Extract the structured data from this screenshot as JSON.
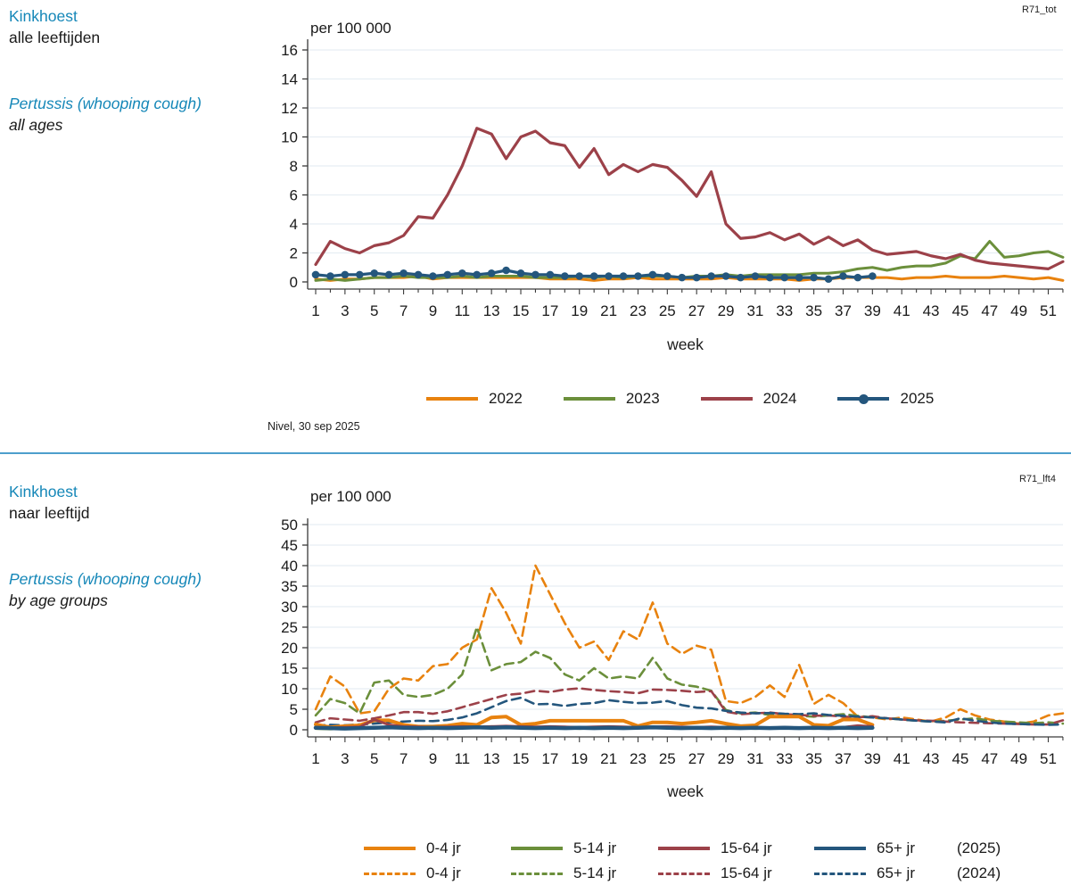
{
  "sections": [
    {
      "code": "R71_tot",
      "title": "Kinkhoest",
      "subtitle": "alle leeftijden",
      "title_en": "Pertussis (whooping cough)",
      "subtitle_en": "all ages",
      "source": "Nivel, 30 sep 2025"
    },
    {
      "code": "R71_lft4",
      "title": "Kinkhoest",
      "subtitle": "naar leeftijd",
      "title_en": "Pertussis (whooping cough)",
      "subtitle_en": "by age groups"
    }
  ],
  "colors": {
    "orange": "#E8820E",
    "green": "#6B8F3B",
    "maroon": "#9C4149",
    "navy": "#24567D",
    "header_blue": "#1587B8",
    "divider": "#4D9FCC",
    "grid": "#E7EEF3",
    "axis": "#3A3A3A",
    "text": "#1A1A1A"
  },
  "chart_data": [
    {
      "type": "line",
      "title": "Kinkhoest, alle leeftijden / Pertussis (whooping cough), all ages",
      "unit": "per 100 000",
      "xlabel": "week",
      "x_start_week": 1,
      "x_end_week": 52,
      "x_ticks": [
        1,
        3,
        5,
        7,
        9,
        11,
        13,
        15,
        17,
        19,
        21,
        23,
        25,
        27,
        29,
        31,
        33,
        35,
        37,
        39,
        41,
        43,
        45,
        47,
        49,
        51
      ],
      "ylim": [
        0,
        16
      ],
      "yticks": [
        0,
        2,
        4,
        6,
        8,
        10,
        12,
        14,
        16
      ],
      "grid": "horizontal",
      "legend_position": "bottom",
      "series": [
        {
          "name": "2022",
          "color_key": "orange",
          "style": "solid",
          "width": 3,
          "values": [
            0.2,
            0.1,
            0.2,
            0.2,
            0.3,
            0.3,
            0.3,
            0.4,
            0.2,
            0.3,
            0.3,
            0.3,
            0.3,
            0.3,
            0.3,
            0.3,
            0.2,
            0.2,
            0.2,
            0.1,
            0.2,
            0.2,
            0.3,
            0.2,
            0.2,
            0.2,
            0.2,
            0.2,
            0.3,
            0.2,
            0.2,
            0.2,
            0.2,
            0.1,
            0.2,
            0.2,
            0.3,
            0.3,
            0.3,
            0.3,
            0.2,
            0.3,
            0.3,
            0.4,
            0.3,
            0.3,
            0.3,
            0.4,
            0.3,
            0.2,
            0.3,
            0.1
          ]
        },
        {
          "name": "2023",
          "color_key": "green",
          "style": "solid",
          "width": 3,
          "values": [
            0.1,
            0.2,
            0.1,
            0.2,
            0.3,
            0.3,
            0.4,
            0.3,
            0.3,
            0.3,
            0.4,
            0.3,
            0.4,
            0.4,
            0.4,
            0.3,
            0.3,
            0.3,
            0.4,
            0.3,
            0.4,
            0.3,
            0.4,
            0.4,
            0.4,
            0.3,
            0.4,
            0.4,
            0.5,
            0.4,
            0.5,
            0.5,
            0.5,
            0.5,
            0.6,
            0.6,
            0.7,
            0.9,
            1.0,
            0.8,
            1.0,
            1.1,
            1.1,
            1.3,
            1.8,
            1.6,
            2.8,
            1.7,
            1.8,
            2.0,
            2.1,
            1.7
          ]
        },
        {
          "name": "2024",
          "color_key": "maroon",
          "style": "solid",
          "width": 3.2,
          "values": [
            1.2,
            2.8,
            2.3,
            2.0,
            2.5,
            2.7,
            3.2,
            4.5,
            4.4,
            6.0,
            8.0,
            10.6,
            10.2,
            8.5,
            10.0,
            10.4,
            9.6,
            9.4,
            7.9,
            9.2,
            7.4,
            8.1,
            7.6,
            8.1,
            7.9,
            7.0,
            5.9,
            7.6,
            4.0,
            3.0,
            3.1,
            3.4,
            2.9,
            3.3,
            2.6,
            3.1,
            2.5,
            2.9,
            2.2,
            1.9,
            2.0,
            2.1,
            1.8,
            1.6,
            1.9,
            1.5,
            1.3,
            1.2,
            1.1,
            1.0,
            0.9,
            1.4
          ]
        },
        {
          "name": "2025",
          "color_key": "navy",
          "style": "solid",
          "width": 3.2,
          "marker": true,
          "values": [
            0.5,
            0.4,
            0.5,
            0.5,
            0.6,
            0.5,
            0.6,
            0.5,
            0.4,
            0.5,
            0.6,
            0.5,
            0.6,
            0.8,
            0.6,
            0.5,
            0.5,
            0.4,
            0.4,
            0.4,
            0.4,
            0.4,
            0.4,
            0.5,
            0.4,
            0.3,
            0.3,
            0.4,
            0.4,
            0.3,
            0.4,
            0.3,
            0.3,
            0.3,
            0.3,
            0.2,
            0.4,
            0.3,
            0.4
          ]
        }
      ]
    },
    {
      "type": "line",
      "title": "Kinkhoest, naar leeftijd / Pertussis (whooping cough), by age groups",
      "unit": "per 100 000",
      "xlabel": "week",
      "x_start_week": 1,
      "x_end_week": 52,
      "x_ticks": [
        1,
        3,
        5,
        7,
        9,
        11,
        13,
        15,
        17,
        19,
        21,
        23,
        25,
        27,
        29,
        31,
        33,
        35,
        37,
        39,
        41,
        43,
        45,
        47,
        49,
        51
      ],
      "ylim": [
        0,
        50
      ],
      "yticks": [
        0,
        5,
        10,
        15,
        20,
        25,
        30,
        35,
        40,
        45,
        50
      ],
      "grid": "horizontal",
      "legend_position": "bottom",
      "legend": {
        "row1_year": "(2025)",
        "row2_year": "(2024)"
      },
      "series": [
        {
          "name": "0-4 jr",
          "year": "2024",
          "color_key": "orange",
          "style": "dashed",
          "width": 2.6,
          "values": [
            5,
            13,
            10.5,
            4,
            4.5,
            10,
            12.5,
            12,
            15.5,
            16,
            20,
            22,
            34.5,
            28.5,
            21,
            40,
            33,
            26,
            20,
            21.5,
            17,
            24,
            22,
            31,
            21,
            18.5,
            20.5,
            19.5,
            7,
            6.5,
            8,
            10.8,
            8,
            15.8,
            6.3,
            8.5,
            6.5,
            3.2,
            3,
            2.5,
            3,
            2.5,
            2,
            3,
            5,
            3.5,
            2.5,
            2,
            1.5,
            2,
            3.5,
            4
          ]
        },
        {
          "name": "5-14 jr",
          "year": "2024",
          "color_key": "green",
          "style": "dashed",
          "width": 2.6,
          "values": [
            3.5,
            7.5,
            6.5,
            4,
            11.5,
            12,
            8.5,
            8,
            8.5,
            10,
            13.5,
            25,
            14.5,
            16,
            16.5,
            19,
            17.5,
            13.5,
            12,
            15,
            12.5,
            13,
            12.5,
            17.5,
            12.5,
            11,
            10.5,
            9.5,
            4.8,
            4,
            4.2,
            3.6,
            3.8,
            3.4,
            3.2,
            3.5,
            3.8,
            3.4,
            3,
            2.8,
            2.5,
            2.2,
            2,
            2.2,
            2.5,
            2.8,
            2.2,
            2,
            1.8,
            1.6,
            1.8,
            1.5
          ]
        },
        {
          "name": "15-64 jr",
          "year": "2024",
          "color_key": "maroon",
          "style": "dashed",
          "width": 2.6,
          "values": [
            1.8,
            2.8,
            2.5,
            2.2,
            2.8,
            3.5,
            4.3,
            4.3,
            3.9,
            4.5,
            5.5,
            6.5,
            7.5,
            8.5,
            8.8,
            9.5,
            9.2,
            9.8,
            10.1,
            9.7,
            9.4,
            9.2,
            8.9,
            9.8,
            9.7,
            9.5,
            9.2,
            9.4,
            4.4,
            3.8,
            4.0,
            4.2,
            3.8,
            3.6,
            3.4,
            3.5,
            3.2,
            3.0,
            3.3,
            2.8,
            2.5,
            2.3,
            2.2,
            2.0,
            1.8,
            1.7,
            1.6,
            1.5,
            1.4,
            1.3,
            1.3,
            2.3
          ]
        },
        {
          "name": "65+ jr",
          "year": "2024",
          "color_key": "navy",
          "style": "dashed",
          "width": 2.6,
          "values": [
            1.0,
            1.2,
            1.1,
            1.3,
            1.5,
            1.8,
            2.0,
            2.2,
            2.1,
            2.4,
            3.0,
            4.0,
            5.5,
            7.0,
            7.8,
            6.2,
            6.3,
            5.8,
            6.3,
            6.5,
            7.2,
            6.8,
            6.5,
            6.6,
            7.0,
            6.0,
            5.4,
            5.2,
            4.6,
            4.2,
            4.0,
            4.1,
            3.9,
            3.8,
            4.0,
            3.6,
            3.4,
            3.2,
            3.0,
            2.8,
            2.5,
            2.2,
            2.0,
            1.8,
            2.8,
            2.2,
            1.8,
            1.5,
            1.4,
            1.3,
            1.2,
            1.3
          ]
        },
        {
          "name": "0-4 jr",
          "year": "2025",
          "color_key": "orange",
          "style": "solid",
          "width": 4,
          "values": [
            1.3,
            0.6,
            0.9,
            1.1,
            2.3,
            2.3,
            1.2,
            0.8,
            0.8,
            1.0,
            1.5,
            1.2,
            3.0,
            3.2,
            1.2,
            1.5,
            2.2,
            2.2,
            2.2,
            2.2,
            2.2,
            2.2,
            0.9,
            1.8,
            1.8,
            1.5,
            1.8,
            2.2,
            1.5,
            0.9,
            1.1,
            3.2,
            3.2,
            3.2,
            1.2,
            1.0,
            2.5,
            2.5,
            1.2
          ]
        },
        {
          "name": "5-14 jr",
          "year": "2025",
          "color_key": "green",
          "style": "solid",
          "width": 3,
          "values": [
            0.3,
            0.2,
            0.3,
            0.4,
            0.5,
            0.6,
            0.5,
            0.4,
            0.3,
            0.4,
            0.5,
            0.6,
            0.8,
            0.6,
            0.5,
            0.4,
            0.5,
            0.4,
            0.3,
            0.4,
            0.5,
            0.4,
            0.5,
            0.6,
            0.5,
            0.4,
            0.5,
            0.4,
            0.3,
            0.4,
            0.3,
            0.4,
            0.5,
            0.4,
            0.3,
            0.4,
            0.5,
            0.6,
            0.5
          ]
        },
        {
          "name": "15-64 jr",
          "year": "2025",
          "color_key": "maroon",
          "style": "solid",
          "width": 3,
          "values": [
            0.6,
            0.5,
            0.6,
            0.7,
            2.5,
            1.2,
            0.8,
            0.7,
            0.6,
            0.7,
            0.8,
            0.7,
            0.8,
            0.9,
            0.8,
            0.7,
            0.8,
            0.7,
            0.6,
            0.7,
            0.8,
            0.7,
            0.6,
            0.7,
            0.8,
            0.7,
            0.6,
            0.7,
            0.6,
            0.5,
            0.6,
            0.5,
            0.6,
            0.5,
            0.6,
            0.5,
            0.6,
            1.0,
            0.8
          ]
        },
        {
          "name": "65+ jr",
          "year": "2025",
          "color_key": "navy",
          "style": "solid",
          "width": 4.5,
          "values": [
            0.5,
            0.4,
            0.3,
            0.4,
            0.5,
            0.6,
            0.5,
            0.4,
            0.5,
            0.4,
            0.5,
            0.6,
            0.5,
            0.6,
            0.5,
            0.4,
            0.5,
            0.4,
            0.5,
            0.4,
            0.5,
            0.4,
            0.5,
            0.6,
            0.5,
            0.4,
            0.5,
            0.4,
            0.5,
            0.4,
            0.5,
            0.4,
            0.5,
            0.4,
            0.5,
            0.4,
            0.5,
            0.4,
            0.5
          ]
        }
      ]
    }
  ]
}
